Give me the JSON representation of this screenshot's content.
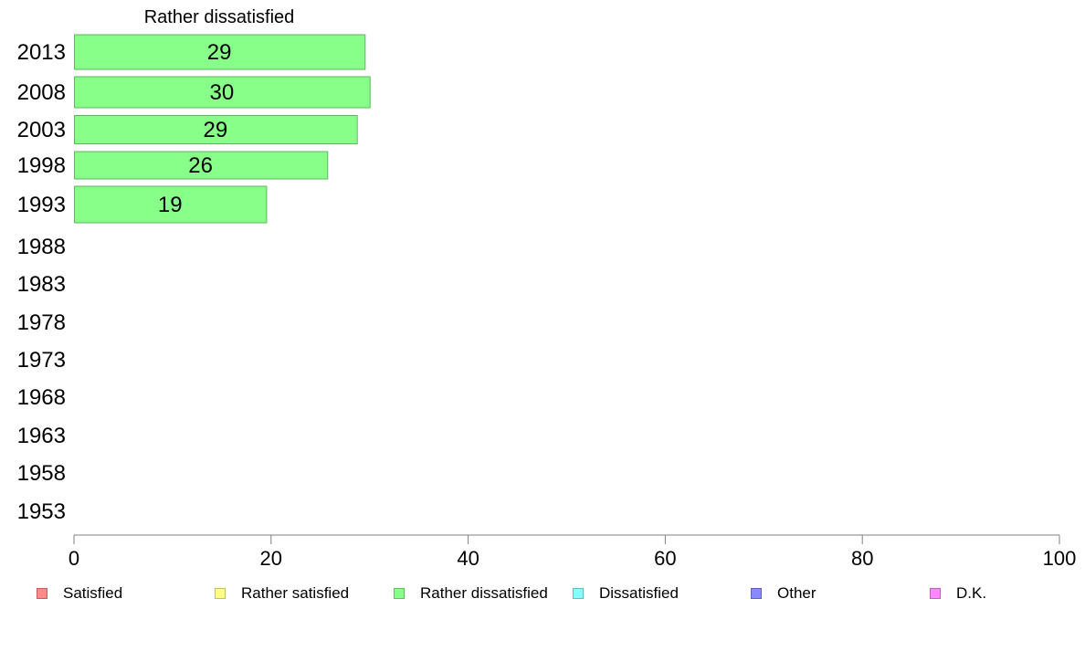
{
  "chart_data": {
    "type": "bar",
    "orientation": "horizontal",
    "title": "Rather dissatisfied",
    "categories": [
      "2013",
      "2008",
      "2003",
      "1998",
      "1993",
      "1988",
      "1983",
      "1978",
      "1973",
      "1968",
      "1963",
      "1958",
      "1953"
    ],
    "series": [
      {
        "name": "Rather dissatisfied",
        "values": [
          29.5,
          30,
          28.7,
          25.7,
          19.5,
          null,
          null,
          null,
          null,
          null,
          null,
          null,
          null
        ],
        "labels": [
          "29",
          "30",
          "29",
          "26",
          "19",
          null,
          null,
          null,
          null,
          null,
          null,
          null,
          null
        ],
        "color": "#88ff88",
        "border": "#5cb85c"
      }
    ],
    "xlim": [
      0,
      100
    ],
    "xticks": [
      "0",
      "20",
      "40",
      "60",
      "80",
      "100"
    ],
    "xtick_values": [
      0,
      20,
      40,
      60,
      80,
      100
    ],
    "grid": false,
    "legend_placement": "bottom",
    "legend": [
      {
        "label": "Satisfied",
        "color": "#ff8888",
        "border": "#c06060"
      },
      {
        "label": "Rather satisfied",
        "color": "#ffff88",
        "border": "#c0c060"
      },
      {
        "label": "Rather dissatisfied",
        "color": "#88ff88",
        "border": "#60c060"
      },
      {
        "label": "Dissatisfied",
        "color": "#88ffff",
        "border": "#60c0c0"
      },
      {
        "label": "Other",
        "color": "#8888ff",
        "border": "#6060c0"
      },
      {
        "label": "D.K.",
        "color": "#ff88ff",
        "border": "#c060c0"
      }
    ]
  }
}
